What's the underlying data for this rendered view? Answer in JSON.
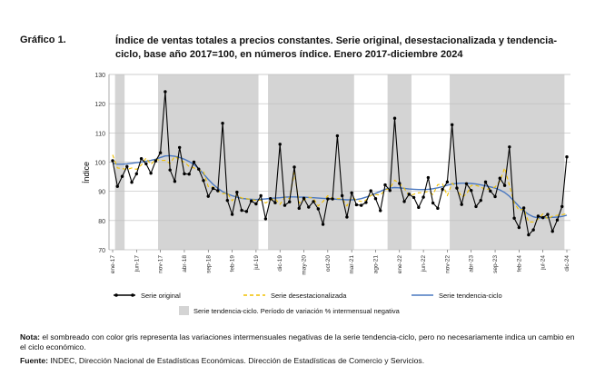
{
  "figure": {
    "label": "Gráfico 1.",
    "title": "Índice de ventas totales a precios constantes. Serie original, desestacionalizada y tendencia-ciclo, base año 2017=100, en números índice. Enero 2017-diciembre 2024"
  },
  "note": {
    "label": "Nota:",
    "text": " el sombreado con color gris representa las variaciones intermensuales negativas de la serie tendencia-ciclo, pero no necesariamente indica un cambio en el ciclo económico."
  },
  "source": {
    "label": "Fuente:",
    "text": " INDEC, Dirección Nacional de Estadísticas Económicas. Dirección de Estadísticas de Comercio y Servicios."
  },
  "chart_data": {
    "type": "line",
    "ylabel": "Índice",
    "ylim": [
      70,
      130
    ],
    "yticks": [
      70,
      80,
      90,
      100,
      110,
      120,
      130
    ],
    "grid": true,
    "legend_position": "bottom",
    "x_tick_labels": [
      "ene-17",
      "jun-17",
      "nov-17",
      "abr-18",
      "sep-18",
      "feb-19",
      "jul-19",
      "dic-19",
      "may-20",
      "oct-20",
      "mar-21",
      "ago-21",
      "ene-22",
      "jun-22",
      "nov-22",
      "abr-23",
      "sep-23",
      "feb-24",
      "jul-24",
      "dic-24"
    ],
    "x_tick_index": [
      0,
      5,
      10,
      15,
      20,
      25,
      30,
      35,
      40,
      45,
      50,
      55,
      60,
      65,
      70,
      75,
      80,
      85,
      90,
      95
    ],
    "shaded_legend": "Serie tendencia-ciclo. Período de variación % intermensual negativa",
    "shaded_periods": [
      [
        1,
        2
      ],
      [
        10,
        30
      ],
      [
        33,
        50
      ],
      [
        58,
        62
      ],
      [
        71,
        94
      ]
    ],
    "series": [
      {
        "name": "Serie original",
        "color": "#000000",
        "marker": "circle",
        "values": [
          100.5,
          91.7,
          95.1,
          98.5,
          93.1,
          96.0,
          101.2,
          99.4,
          96.2,
          100.4,
          103.2,
          124.1,
          97.3,
          93.4,
          105.0,
          96.0,
          95.9,
          100.0,
          97.6,
          93.7,
          88.3,
          91.0,
          90.2,
          113.3,
          86.9,
          82.1,
          89.7,
          83.5,
          83.1,
          86.7,
          85.7,
          88.5,
          80.6,
          87.5,
          86.1,
          106.1,
          85.2,
          86.4,
          98.3,
          84.2,
          87.6,
          84.6,
          86.5,
          84.0,
          78.7,
          87.4,
          87.4,
          109.0,
          88.5,
          81.2,
          89.5,
          85.4,
          85.2,
          86.2,
          90.2,
          87.5,
          83.4,
          92.2,
          90.3,
          115.0,
          92.7,
          86.5,
          89.0,
          87.9,
          84.5,
          88.0,
          94.7,
          86.0,
          84.2,
          90.7,
          93.2,
          112.8,
          91.1,
          85.5,
          92.6,
          90.3,
          84.8,
          86.9,
          93.2,
          90.1,
          88.2,
          94.5,
          92.0,
          105.2,
          80.8,
          77.6,
          84.3,
          75.1,
          76.8,
          81.5,
          81.0,
          82.1,
          76.3,
          80.2,
          84.8,
          101.8
        ]
      },
      {
        "name": "Serie desestacionalizada",
        "color": "#f0c000",
        "dash": true,
        "values": [
          102.5,
          98.0,
          97.8,
          97.5,
          98.0,
          97.5,
          99.0,
          101.4,
          99.2,
          101.0,
          100.6,
          100.6,
          99.5,
          102.0,
          100.8,
          100.0,
          98.5,
          98.0,
          97.3,
          96.8,
          91.6,
          91.5,
          90.2,
          89.2,
          89.4,
          86.8,
          88.7,
          87.7,
          87.5,
          87.2,
          86.9,
          87.0,
          86.0,
          87.0,
          87.5,
          85.5,
          88.0,
          87.5,
          96.5,
          86.0,
          87.0,
          88.0,
          87.6,
          85.0,
          86.5,
          88.5,
          87.5,
          87.5,
          87.5,
          85.0,
          88.0,
          87.0,
          86.5,
          87.0,
          88.6,
          88.9,
          88.7,
          90.5,
          91.0,
          93.8,
          92.7,
          91.0,
          88.5,
          89.0,
          89.5,
          89.6,
          90.0,
          88.9,
          92.3,
          92.5,
          88.5,
          92.8,
          91.3,
          88.0,
          89.0,
          92.0,
          92.0,
          91.5,
          90.5,
          91.0,
          91.5,
          93.5,
          98.0,
          92.0,
          86.0,
          83.5,
          84.0,
          79.5,
          79.5,
          80.5,
          82.3,
          80.5,
          81.5,
          81.8,
          82.0,
          82.3
        ]
      },
      {
        "name": "Serie tendencia-ciclo",
        "color": "#4a78c0",
        "values": [
          99.6,
          99.3,
          99.3,
          99.4,
          99.6,
          99.8,
          100.0,
          100.3,
          100.6,
          101.0,
          101.6,
          102.1,
          102.2,
          102.0,
          101.6,
          101.0,
          100.2,
          99.2,
          97.8,
          96.0,
          94.1,
          92.4,
          91.0,
          89.9,
          89.1,
          88.5,
          88.0,
          87.6,
          87.4,
          87.3,
          87.2,
          87.3,
          87.4,
          87.6,
          87.7,
          87.8,
          88.0,
          88.1,
          88.1,
          88.0,
          88.0,
          87.9,
          87.8,
          87.7,
          87.6,
          87.5,
          87.4,
          87.3,
          87.2,
          87.1,
          87.1,
          87.2,
          87.5,
          88.0,
          88.6,
          89.3,
          90.0,
          90.7,
          91.1,
          91.3,
          91.2,
          91.0,
          90.8,
          90.7,
          90.6,
          90.6,
          90.7,
          90.9,
          91.2,
          91.6,
          92.1,
          92.5,
          92.7,
          92.8,
          92.8,
          92.7,
          92.5,
          92.2,
          91.9,
          91.5,
          91.1,
          90.5,
          89.6,
          88.3,
          86.6,
          84.8,
          83.3,
          82.1,
          81.3,
          80.9,
          80.9,
          81.0,
          81.1,
          81.2,
          81.4,
          81.8
        ]
      }
    ]
  }
}
